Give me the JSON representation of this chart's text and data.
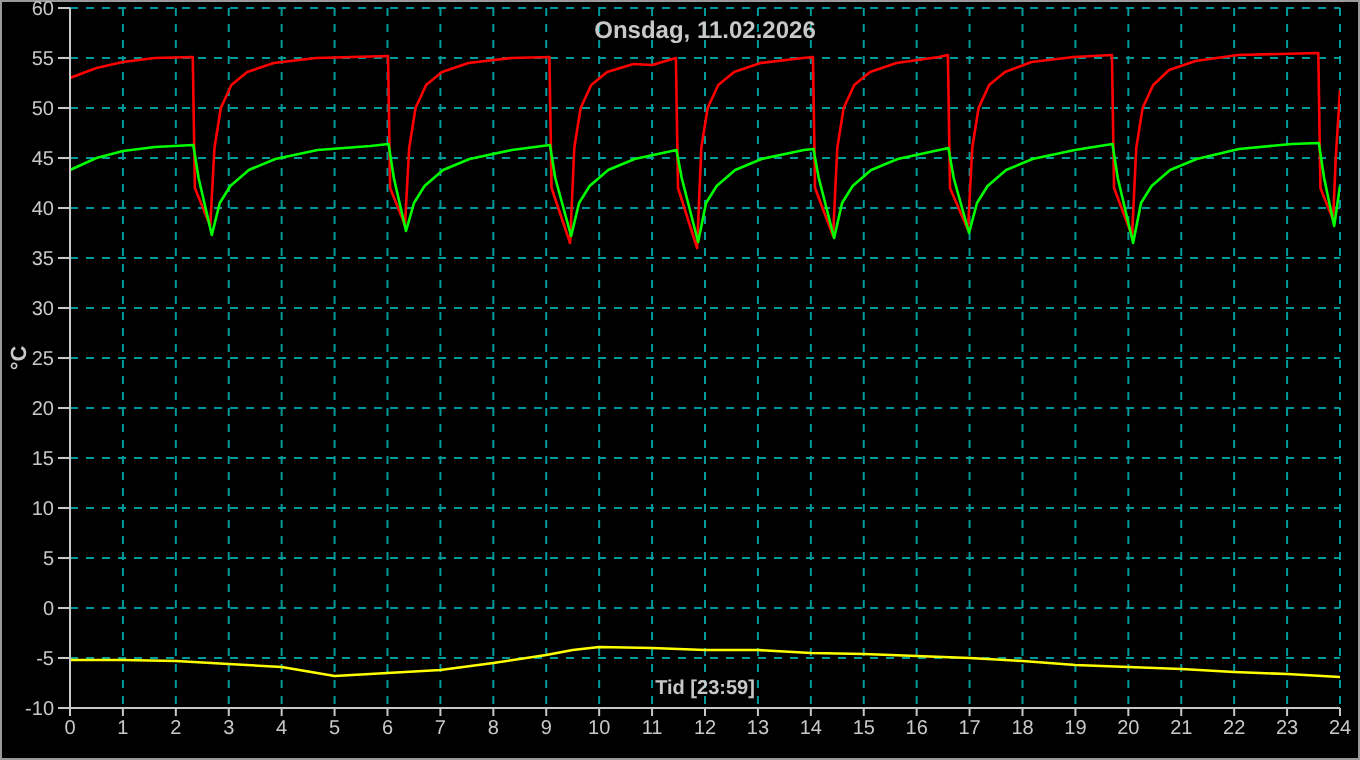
{
  "chart_data": {
    "type": "line",
    "title": "Onsdag, 11.02.2026",
    "xlabel": "Tid [23:59]",
    "ylabel": "°C",
    "xlim": [
      0,
      24
    ],
    "xticks": [
      0,
      1,
      2,
      3,
      4,
      5,
      6,
      7,
      8,
      9,
      10,
      11,
      12,
      13,
      14,
      15,
      16,
      17,
      18,
      19,
      20,
      21,
      22,
      23,
      24
    ],
    "ylim": [
      -10,
      60
    ],
    "yticks": [
      -10,
      -5,
      0,
      5,
      10,
      15,
      20,
      25,
      30,
      35,
      40,
      45,
      50,
      55,
      60
    ],
    "grid": true,
    "marker": "none",
    "line_style": "solid",
    "series": [
      {
        "color": "#ff0000",
        "x": [
          0,
          0.5,
          1,
          1.6,
          2.32,
          2.36,
          2.65,
          2.73,
          2.85,
          3.05,
          3.35,
          3.85,
          4.65,
          6.01,
          6.05,
          6.33,
          6.41,
          6.53,
          6.73,
          7.03,
          7.53,
          8.33,
          9.06,
          9.1,
          9.45,
          9.53,
          9.65,
          9.85,
          10.15,
          10.65,
          11,
          11.45,
          11.49,
          11.85,
          11.93,
          12.05,
          12.25,
          12.55,
          13.05,
          13.85,
          14.04,
          14.08,
          14.42,
          14.5,
          14.62,
          14.82,
          15.12,
          15.62,
          16.42,
          16.59,
          16.63,
          16.97,
          17.05,
          17.17,
          17.37,
          17.67,
          18.17,
          18.97,
          19.69,
          19.73,
          20.07,
          20.15,
          20.27,
          20.47,
          20.77,
          21.27,
          22.07,
          23.59,
          23.63,
          23.87,
          23.92,
          24
        ],
        "values": [
          53,
          54,
          54.6,
          55,
          55.1,
          42,
          38.2,
          46,
          50,
          52.3,
          53.6,
          54.5,
          55,
          55.2,
          42,
          38.3,
          46,
          50,
          52.3,
          53.6,
          54.5,
          55,
          55.1,
          42,
          36.5,
          46,
          50,
          52.3,
          53.6,
          54.4,
          54.3,
          55,
          42,
          36,
          46,
          50,
          52.3,
          53.6,
          54.5,
          55,
          55.1,
          42,
          37.2,
          46,
          50,
          52.3,
          53.6,
          54.5,
          55.1,
          55.3,
          42,
          37.8,
          46,
          50,
          52.3,
          53.6,
          54.6,
          55.1,
          55.3,
          42,
          37.2,
          46,
          50,
          52.3,
          53.8,
          54.7,
          55.3,
          55.5,
          42,
          38.8,
          45,
          51.8
        ]
      },
      {
        "color": "#00ff00",
        "x": [
          0,
          0.5,
          1,
          1.6,
          2.33,
          2.43,
          2.68,
          2.83,
          3.03,
          3.38,
          3.88,
          4.68,
          5.68,
          6.02,
          6.12,
          6.35,
          6.5,
          6.7,
          7.05,
          7.55,
          8.35,
          9.07,
          9.17,
          9.47,
          9.62,
          9.82,
          10.17,
          10.67,
          11.46,
          11.56,
          11.87,
          12.02,
          12.22,
          12.57,
          13.07,
          13.87,
          14.05,
          14.15,
          14.44,
          14.59,
          14.79,
          15.14,
          15.64,
          16.6,
          16.7,
          16.99,
          17.14,
          17.34,
          17.69,
          18.19,
          18.99,
          19.7,
          19.8,
          20.09,
          20.24,
          20.44,
          20.79,
          21.29,
          22.09,
          23.09,
          23.6,
          23.7,
          23.89,
          24
        ],
        "values": [
          43.8,
          45,
          45.7,
          46.1,
          46.3,
          43,
          37.3,
          40.5,
          42.2,
          43.8,
          44.9,
          45.8,
          46.2,
          46.4,
          43,
          37.7,
          40.5,
          42.2,
          43.8,
          44.9,
          45.8,
          46.3,
          43,
          37.2,
          40.5,
          42.2,
          43.8,
          44.9,
          45.8,
          43,
          36.6,
          40.5,
          42.2,
          43.8,
          44.9,
          45.8,
          45.9,
          43,
          37,
          40.5,
          42.2,
          43.8,
          44.9,
          46,
          43,
          37.5,
          40.5,
          42.2,
          43.8,
          44.9,
          45.8,
          46.4,
          43,
          36.5,
          40.5,
          42.2,
          43.8,
          44.9,
          45.9,
          46.4,
          46.5,
          43,
          38.2,
          42.2
        ]
      },
      {
        "color": "#ffff00",
        "x": [
          0,
          1,
          2,
          3,
          4,
          5,
          6,
          7,
          8,
          9,
          9.5,
          10,
          11,
          12,
          13,
          14,
          15,
          16,
          17,
          18,
          19,
          20,
          21,
          22,
          23,
          24
        ],
        "values": [
          -5.2,
          -5.2,
          -5.3,
          -5.6,
          -5.9,
          -6.8,
          -6.5,
          -6.2,
          -5.5,
          -4.7,
          -4.2,
          -3.9,
          -4,
          -4.2,
          -4.2,
          -4.5,
          -4.6,
          -4.8,
          -5,
          -5.3,
          -5.7,
          -5.9,
          -6.1,
          -6.4,
          -6.6,
          -6.9
        ]
      }
    ]
  }
}
